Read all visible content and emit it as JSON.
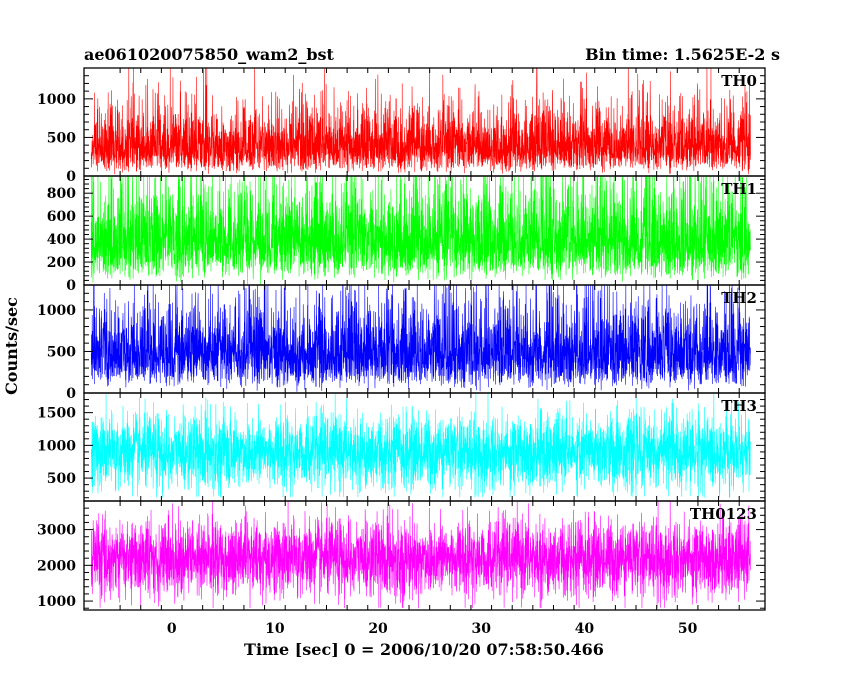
{
  "title_left": "ae061020075850_wam2_bst",
  "title_right": "Bin time: 1.5625E-2 s",
  "chart_data": {
    "type": "line",
    "xlabel": "Time [sec] 0 = 2006/10/20 07:58:50.466",
    "ylabel": "Counts/sec",
    "xlim": [
      -8.5,
      57.5
    ],
    "x_range": [
      -7.8,
      56.1
    ],
    "xticks": [
      0,
      10,
      20,
      30,
      40,
      50
    ],
    "panels": [
      {
        "name": "TH0",
        "color": "#ff0000",
        "ylim": [
          0,
          1400
        ],
        "yticks": [
          0,
          500,
          1000
        ],
        "mean": 420,
        "low": 10,
        "high": 1400,
        "dist": "gamma"
      },
      {
        "name": "TH1",
        "color": "#00ff00",
        "ylim": [
          0,
          950
        ],
        "yticks": [
          0,
          200,
          400,
          600,
          800
        ],
        "mean": 420,
        "low": 0,
        "high": 950,
        "dist": "gamma"
      },
      {
        "name": "TH2",
        "color": "#0000ff",
        "ylim": [
          0,
          1300
        ],
        "yticks": [
          0,
          500,
          1000
        ],
        "mean": 520,
        "low": 0,
        "high": 1300,
        "dist": "gamma"
      },
      {
        "name": "TH3",
        "color": "#00ffff",
        "ylim": [
          150,
          1800
        ],
        "yticks": [
          500,
          1000,
          1500
        ],
        "mean": 900,
        "low": 200,
        "high": 1800,
        "dist": "normal"
      },
      {
        "name": "TH0123",
        "color": "#ff00ff",
        "ylim": [
          750,
          3800
        ],
        "yticks": [
          1000,
          2000,
          3000
        ],
        "mean": 2200,
        "low": 800,
        "high": 3800,
        "dist": "normal"
      }
    ]
  }
}
